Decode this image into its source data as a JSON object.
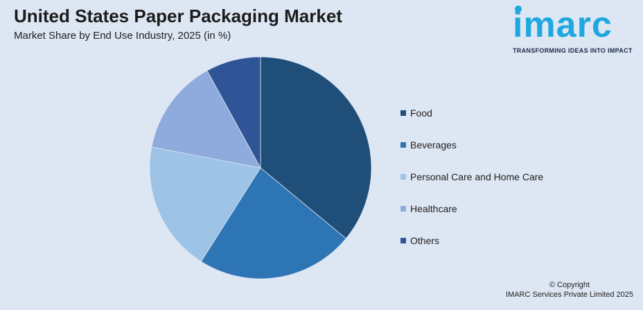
{
  "header": {
    "title": "United States Paper Packaging Market",
    "subtitle": "Market Share by End Use Industry, 2025 (in %)"
  },
  "logo": {
    "word": "imarc",
    "tagline": "TRANSFORMING IDEAS INTO IMPACT"
  },
  "chart_data": {
    "type": "pie",
    "title": "United States Paper Packaging Market",
    "subtitle": "Market Share by End Use Industry, 2025 (in %)",
    "categories": [
      "Food",
      "Beverages",
      "Personal Care and Home Care",
      "Healthcare",
      "Others"
    ],
    "values": [
      36,
      23,
      19,
      14,
      8
    ],
    "colors": [
      "#1f4e79",
      "#2e75b6",
      "#9dc3e6",
      "#8faadc",
      "#2f5597"
    ],
    "start_angle_deg": 0,
    "direction": "clockwise",
    "legend_position": "right"
  },
  "legend": {
    "items": [
      {
        "label": "Food",
        "color": "#1f4e79"
      },
      {
        "label": "Beverages",
        "color": "#2e75b6"
      },
      {
        "label": "Personal Care and Home Care",
        "color": "#9dc3e6"
      },
      {
        "label": "Healthcare",
        "color": "#8faadc"
      },
      {
        "label": "Others",
        "color": "#2f5597"
      }
    ]
  },
  "footer": {
    "copyright": "© Copyright",
    "company": "IMARC Services Private Limited 2025"
  }
}
